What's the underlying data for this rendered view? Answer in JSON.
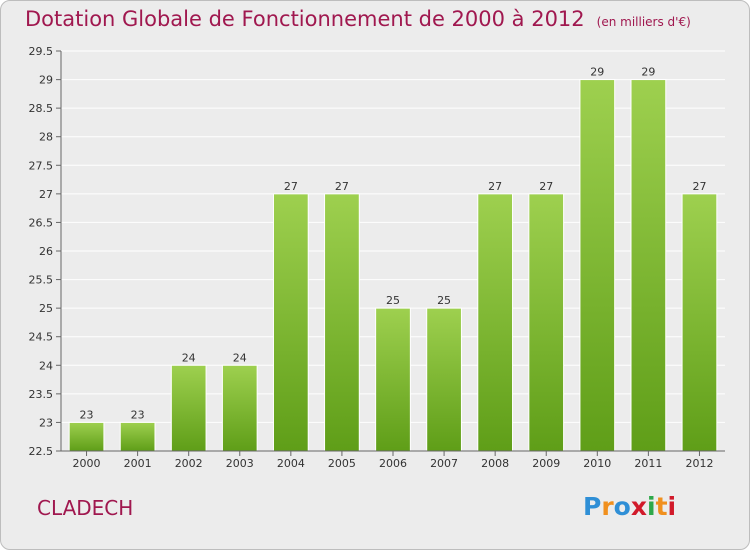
{
  "header": {
    "title": "Dotation Globale de Fonctionnement de 2000 à 2012",
    "unit": "(en milliers d'€)"
  },
  "municipality": "CLADECH",
  "logo": {
    "text": "Proxiti",
    "colors": [
      "#2f8fd6",
      "#f0901e",
      "#2f8fd6",
      "#d11a2a",
      "#2ea84a",
      "#f0901e",
      "#d11a2a"
    ]
  },
  "colors": {
    "bar_top": "#9ed04f",
    "bar_bottom": "#5f9e18",
    "grid": "#ffffff",
    "axis": "#666666",
    "title": "#a0184f"
  },
  "chart_data": {
    "type": "bar",
    "title": "Dotation Globale de Fonctionnement de 2000 à 2012",
    "xlabel": "",
    "ylabel": "",
    "categories": [
      "2000",
      "2001",
      "2002",
      "2003",
      "2004",
      "2005",
      "2006",
      "2007",
      "2008",
      "2009",
      "2010",
      "2011",
      "2012"
    ],
    "values": [
      23,
      23,
      24,
      24,
      27,
      27,
      25,
      25,
      27,
      27,
      29,
      29,
      27
    ],
    "value_labels": [
      "23",
      "23",
      "24",
      "24",
      "27",
      "27",
      "25",
      "25",
      "27",
      "27",
      "29",
      "29",
      "27"
    ],
    "ylim": [
      22.5,
      29.5
    ],
    "yticks": [
      "22.5",
      "23",
      "23.5",
      "24",
      "24.5",
      "25",
      "25.5",
      "26",
      "26.5",
      "27",
      "27.5",
      "28",
      "28.5",
      "29",
      "29.5"
    ],
    "grid": true,
    "legend": "none"
  }
}
